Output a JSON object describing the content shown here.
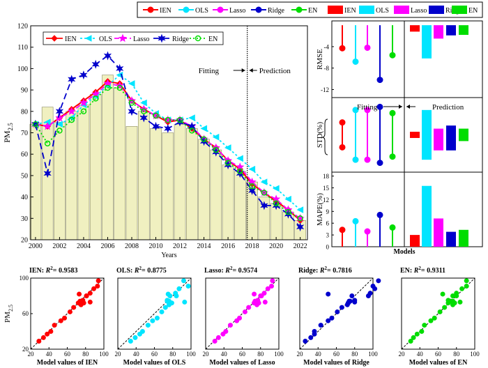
{
  "colors": {
    "IEN": "#ff0000",
    "OLS": "#00e5ff",
    "Lasso": "#ff00ff",
    "Ridge": "#0000cc",
    "EN": "#00dd00",
    "bar_fill": "#f0f0c0",
    "bar_stroke": "#8a8a60"
  },
  "chart_data": [
    {
      "id": "main",
      "type": "line",
      "xlabel": "Years",
      "ylabel": "PM2.5",
      "ylabel_main": "PM",
      "ylabel_sub": "2.5",
      "xlim": [
        1999.6,
        2022.6
      ],
      "ylim": [
        20,
        120
      ],
      "x_ticks": [
        2000,
        2002,
        2004,
        2006,
        2008,
        2010,
        2012,
        2014,
        2016,
        2018,
        2020,
        2022
      ],
      "y_ticks": [
        20,
        30,
        40,
        50,
        60,
        70,
        80,
        90,
        100,
        110,
        120
      ],
      "annotations": {
        "fitting": "Fitting",
        "prediction": "Prediction",
        "split_x": 2017.6
      },
      "x": [
        2000,
        2001,
        2002,
        2003,
        2004,
        2005,
        2006,
        2007,
        2008,
        2009,
        2010,
        2011,
        2012,
        2013,
        2014,
        2015,
        2016,
        2017,
        2018,
        2019,
        2020,
        2021,
        2022
      ],
      "observed": [
        74,
        82,
        75,
        80,
        83,
        88,
        97,
        91,
        73,
        80,
        72,
        70,
        74,
        72,
        67,
        62,
        55,
        52,
        47,
        40,
        37,
        33,
        29
      ],
      "series": [
        {
          "name": "IEN",
          "marker": "diamond",
          "dash": "",
          "values": [
            74,
            73,
            77,
            81,
            85,
            89,
            94,
            93,
            85,
            81,
            78,
            75,
            76,
            72,
            67,
            63,
            57,
            53,
            46,
            42,
            38,
            34,
            29
          ]
        },
        {
          "name": "OLS",
          "marker": "triangle-left",
          "dash": "3,3",
          "values": [
            74,
            75,
            74,
            77,
            83,
            87,
            92,
            97,
            93,
            84,
            79,
            76,
            76,
            77,
            72,
            68,
            63,
            58,
            53,
            47,
            44,
            39,
            34
          ]
        },
        {
          "name": "Lasso",
          "marker": "star",
          "dash": "7,4",
          "values": [
            74,
            73,
            77,
            80,
            84,
            88,
            93,
            92,
            85,
            81,
            78,
            76,
            76,
            73,
            67,
            63,
            57,
            54,
            47,
            42,
            39,
            34,
            30
          ]
        },
        {
          "name": "Ridge",
          "marker": "star6",
          "dash": "9,5",
          "values": [
            74,
            51,
            80,
            95,
            97,
            102,
            106,
            100,
            80,
            77,
            73,
            72,
            75,
            73,
            66,
            61,
            55,
            51,
            43,
            36,
            36,
            32,
            26
          ]
        },
        {
          "name": "EN",
          "marker": "circle-open",
          "dash": "2,3",
          "values": [
            74,
            65,
            71,
            76,
            80,
            86,
            91,
            91,
            84,
            80,
            78,
            76,
            76,
            71,
            67,
            62,
            56,
            52,
            45,
            42,
            37,
            33,
            30
          ]
        }
      ]
    },
    {
      "id": "metrics",
      "type": "bar",
      "top_legend": [
        "IEN",
        "OLS",
        "Lasso",
        "Ridge",
        "EN",
        "IEN",
        "OLS",
        "Lasso",
        "Ridge",
        "EN"
      ],
      "xlabel": "Models",
      "labels": {
        "fitting": "Fitting",
        "prediction": "Prediction"
      },
      "panels": [
        {
          "ylabel": "RMSE",
          "ylim": [
            -13.5,
            0.8
          ],
          "yticks": [
            -4,
            -8,
            -12
          ],
          "fitting": [
            -4.3,
            -6.8,
            -4.2,
            -10.2,
            -5.6
          ],
          "prediction": [
            -1.2,
            -6.2,
            -2.5,
            -1.9,
            -1.8
          ]
        },
        {
          "ylabel": "STD(%)",
          "ylim": [
            -12,
            12
          ],
          "yticks": [],
          "fitting_low": [
            -4,
            -8,
            -8,
            -9,
            -7
          ],
          "fitting_high": [
            4,
            8,
            8,
            9,
            7
          ],
          "prediction_low": [
            -1,
            -8,
            -5,
            -5,
            -2
          ],
          "prediction_high": [
            1,
            8,
            2,
            3,
            2
          ]
        },
        {
          "ylabel": "MAPE(%)",
          "ylim": [
            0,
            19
          ],
          "yticks": [
            0,
            3,
            6,
            9,
            12,
            15,
            18
          ],
          "fitting": [
            4.3,
            6.5,
            3.9,
            8.1,
            4.9
          ],
          "prediction": [
            3.0,
            15.5,
            7.2,
            3.8,
            4.3
          ]
        }
      ]
    },
    {
      "id": "scatter",
      "type": "scatter",
      "ylabel": "PM2.5",
      "ylabel_main": "PM",
      "ylabel_sub": "2.5",
      "xlim": [
        20,
        100
      ],
      "ylim": [
        20,
        100
      ],
      "xticks": [
        20,
        40,
        60,
        80,
        100
      ],
      "yticks": [
        20,
        60,
        100
      ],
      "observed": [
        74,
        82,
        75,
        80,
        83,
        88,
        97,
        91,
        73,
        80,
        72,
        70,
        74,
        72,
        67,
        62,
        55,
        52,
        47,
        40,
        37,
        33,
        29
      ],
      "panels": [
        {
          "model": "IEN",
          "title_prefix": "IEN: ",
          "r2_text": "= 0.9583",
          "xlabel": "Model values of IEN"
        },
        {
          "model": "OLS",
          "title_prefix": "OLS: ",
          "r2_text": "= 0.8775",
          "xlabel": "Model values of OLS"
        },
        {
          "model": "Lasso",
          "title_prefix": "Lasso: ",
          "r2_text": "= 0.9574",
          "xlabel": "Model values of Lasso"
        },
        {
          "model": "Ridge",
          "title_prefix": "Ridge: ",
          "r2_text": "= 0.7816",
          "xlabel": "Model values of Ridge"
        },
        {
          "model": "EN",
          "title_prefix": "EN: ",
          "r2_text": "= 0.9311",
          "xlabel": "Model values of EN"
        }
      ]
    }
  ]
}
